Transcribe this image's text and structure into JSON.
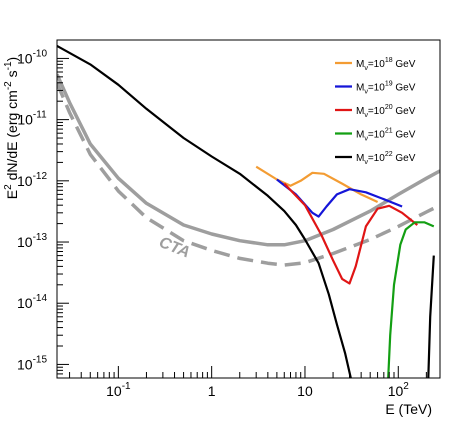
{
  "chart_data": {
    "type": "line",
    "xlabel": "E (TeV)",
    "ylabel_main": "E",
    "ylabel_sup": "2",
    "ylabel_rest": " dN/dE (erg cm",
    "ylabel_sup2": "-2",
    "ylabel_rest2": " s",
    "ylabel_sup3": "-1",
    "ylabel_end": ")",
    "xscale": "log",
    "yscale": "log",
    "xlim": [
      0.022,
      280
    ],
    "ylim": [
      6e-16,
      2e-10
    ],
    "x_ticks": [
      {
        "value": 0.1,
        "base": "10",
        "exp": "-1"
      },
      {
        "value": 1,
        "base": "1",
        "exp": ""
      },
      {
        "value": 10,
        "base": "10",
        "exp": ""
      },
      {
        "value": 100,
        "base": "10",
        "exp": "2"
      }
    ],
    "y_ticks": [
      {
        "value": 1e-10,
        "base": "10",
        "exp": "-10"
      },
      {
        "value": 1e-11,
        "base": "10",
        "exp": "-11"
      },
      {
        "value": 1e-12,
        "base": "10",
        "exp": "-12"
      },
      {
        "value": 1e-13,
        "base": "10",
        "exp": "-13"
      },
      {
        "value": 1e-14,
        "base": "10",
        "exp": "-14"
      },
      {
        "value": 1e-15,
        "base": "10",
        "exp": "-15"
      }
    ],
    "grid": false,
    "legend_position": "top-right",
    "annotation": "CTA",
    "sensitivity_curves": [
      {
        "style": "solid",
        "color": "#9e9e9e",
        "points": [
          [
            0.022,
            5.5e-11
          ],
          [
            0.03,
            1.9e-11
          ],
          [
            0.05,
            4e-12
          ],
          [
            0.1,
            1.1e-12
          ],
          [
            0.2,
            4.3e-13
          ],
          [
            0.5,
            1.9e-13
          ],
          [
            1,
            1.35e-13
          ],
          [
            2,
            1.05e-13
          ],
          [
            4,
            9e-14
          ],
          [
            6,
            9e-14
          ],
          [
            10,
            1.05e-13
          ],
          [
            20,
            1.6e-13
          ],
          [
            50,
            3.2e-13
          ],
          [
            100,
            6e-13
          ],
          [
            200,
            1.1e-12
          ],
          [
            280,
            1.45e-12
          ]
        ]
      },
      {
        "style": "dashed",
        "color": "#9e9e9e",
        "points": [
          [
            0.022,
            4e-11
          ],
          [
            0.03,
            1.3e-11
          ],
          [
            0.05,
            2.7e-12
          ],
          [
            0.1,
            6.8e-13
          ],
          [
            0.2,
            2.5e-13
          ],
          [
            0.5,
            1.05e-13
          ],
          [
            1,
            7.3e-14
          ],
          [
            2,
            5.4e-14
          ],
          [
            4,
            4.5e-14
          ],
          [
            6,
            4.2e-14
          ],
          [
            10,
            4.6e-14
          ],
          [
            20,
            6.5e-14
          ],
          [
            50,
            1.1e-13
          ],
          [
            100,
            1.8e-13
          ],
          [
            200,
            3.1e-13
          ],
          [
            280,
            4e-13
          ]
        ]
      }
    ],
    "series": [
      {
        "label_main": "M",
        "label_sub": "ν",
        "label_mid": "=10",
        "label_exp": "18",
        "label_unit": " GeV",
        "color": "#f39c33",
        "points": [
          [
            3,
            1.7e-12
          ],
          [
            5,
            1.05e-12
          ],
          [
            7,
            8.3e-13
          ],
          [
            9,
            1e-12
          ],
          [
            12,
            1.35e-12
          ],
          [
            16,
            1.3e-12
          ],
          [
            25,
            9e-13
          ],
          [
            40,
            6e-13
          ],
          [
            60,
            4.5e-13
          ]
        ]
      },
      {
        "label_main": "M",
        "label_sub": "ν",
        "label_mid": "=10",
        "label_exp": "19",
        "label_unit": " GeV",
        "color": "#1515d8",
        "points": [
          [
            5,
            1.05e-12
          ],
          [
            8,
            6e-13
          ],
          [
            12,
            3e-13
          ],
          [
            14,
            2.6e-13
          ],
          [
            17,
            3.8e-13
          ],
          [
            22,
            6e-13
          ],
          [
            30,
            7.3e-13
          ],
          [
            45,
            6.5e-13
          ],
          [
            70,
            5e-13
          ],
          [
            110,
            3.8e-13
          ]
        ]
      },
      {
        "label_main": "M",
        "label_sub": "ν",
        "label_mid": "=10",
        "label_exp": "20",
        "label_unit": " GeV",
        "color": "#e01515",
        "points": [
          [
            6,
            9e-13
          ],
          [
            10,
            4e-13
          ],
          [
            15,
            1.3e-13
          ],
          [
            20,
            5e-14
          ],
          [
            25,
            2.5e-14
          ],
          [
            30,
            2.1e-14
          ],
          [
            35,
            4e-14
          ],
          [
            45,
            1.8e-13
          ],
          [
            60,
            3.5e-13
          ],
          [
            80,
            3.9e-13
          ],
          [
            110,
            3e-13
          ],
          [
            160,
            1.9e-13
          ]
        ]
      },
      {
        "label_main": "M",
        "label_sub": "ν",
        "label_mid": "=10",
        "label_exp": "21",
        "label_unit": " GeV",
        "color": "#139f13",
        "points": [
          [
            78,
            6e-16
          ],
          [
            82,
            3e-15
          ],
          [
            90,
            2e-14
          ],
          [
            105,
            9e-14
          ],
          [
            120,
            1.6e-13
          ],
          [
            150,
            2.1e-13
          ],
          [
            190,
            2.1e-13
          ],
          [
            240,
            1.8e-13
          ]
        ]
      },
      {
        "label_main": "M",
        "label_sub": "ν",
        "label_mid": "=10",
        "label_exp": "22",
        "label_unit": " GeV",
        "color": "#000000",
        "points": [
          [
            0.022,
            1.6e-10
          ],
          [
            0.05,
            8e-11
          ],
          [
            0.1,
            3.7e-11
          ],
          [
            0.2,
            1.5e-11
          ],
          [
            0.5,
            5e-12
          ],
          [
            1,
            2.5e-12
          ],
          [
            2,
            1.3e-12
          ],
          [
            4,
            5.7e-13
          ],
          [
            6,
            3.2e-13
          ],
          [
            8,
            1.9e-13
          ],
          [
            10,
            1.1e-13
          ],
          [
            14,
            4.5e-14
          ],
          [
            18,
            1.4e-14
          ],
          [
            22,
            4.5e-15
          ],
          [
            27,
            1.5e-15
          ],
          [
            31,
            6e-16
          ]
        ],
        "tail": [
          [
            210,
            6e-16
          ],
          [
            220,
            6e-15
          ],
          [
            240,
            6e-14
          ]
        ]
      }
    ]
  }
}
